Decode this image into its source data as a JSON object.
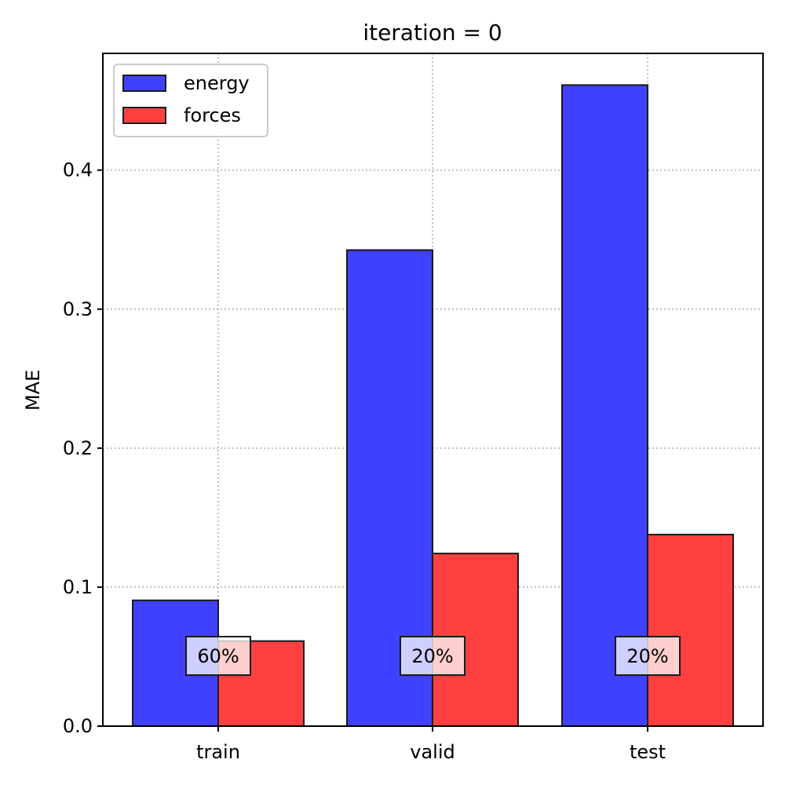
{
  "chart_data": {
    "type": "bar",
    "title": "iteration = 0",
    "xlabel": "",
    "ylabel": "MAE",
    "categories": [
      "train",
      "valid",
      "test"
    ],
    "series": [
      {
        "name": "energy",
        "values": [
          0.0905,
          0.3425,
          0.4612
        ],
        "color": "#4040ff"
      },
      {
        "name": "forces",
        "values": [
          0.0612,
          0.1242,
          0.1378
        ],
        "color": "#ff4040"
      }
    ],
    "category_labels": [
      "60%",
      "20%",
      "20%"
    ],
    "ylim": [
      0,
      0.484
    ],
    "yticks": [
      0.0,
      0.1,
      0.2,
      0.3,
      0.4
    ],
    "ytick_labels": [
      "0.0",
      "0.1",
      "0.2",
      "0.3",
      "0.4"
    ],
    "grid": true,
    "legend_position": "upper-left"
  }
}
